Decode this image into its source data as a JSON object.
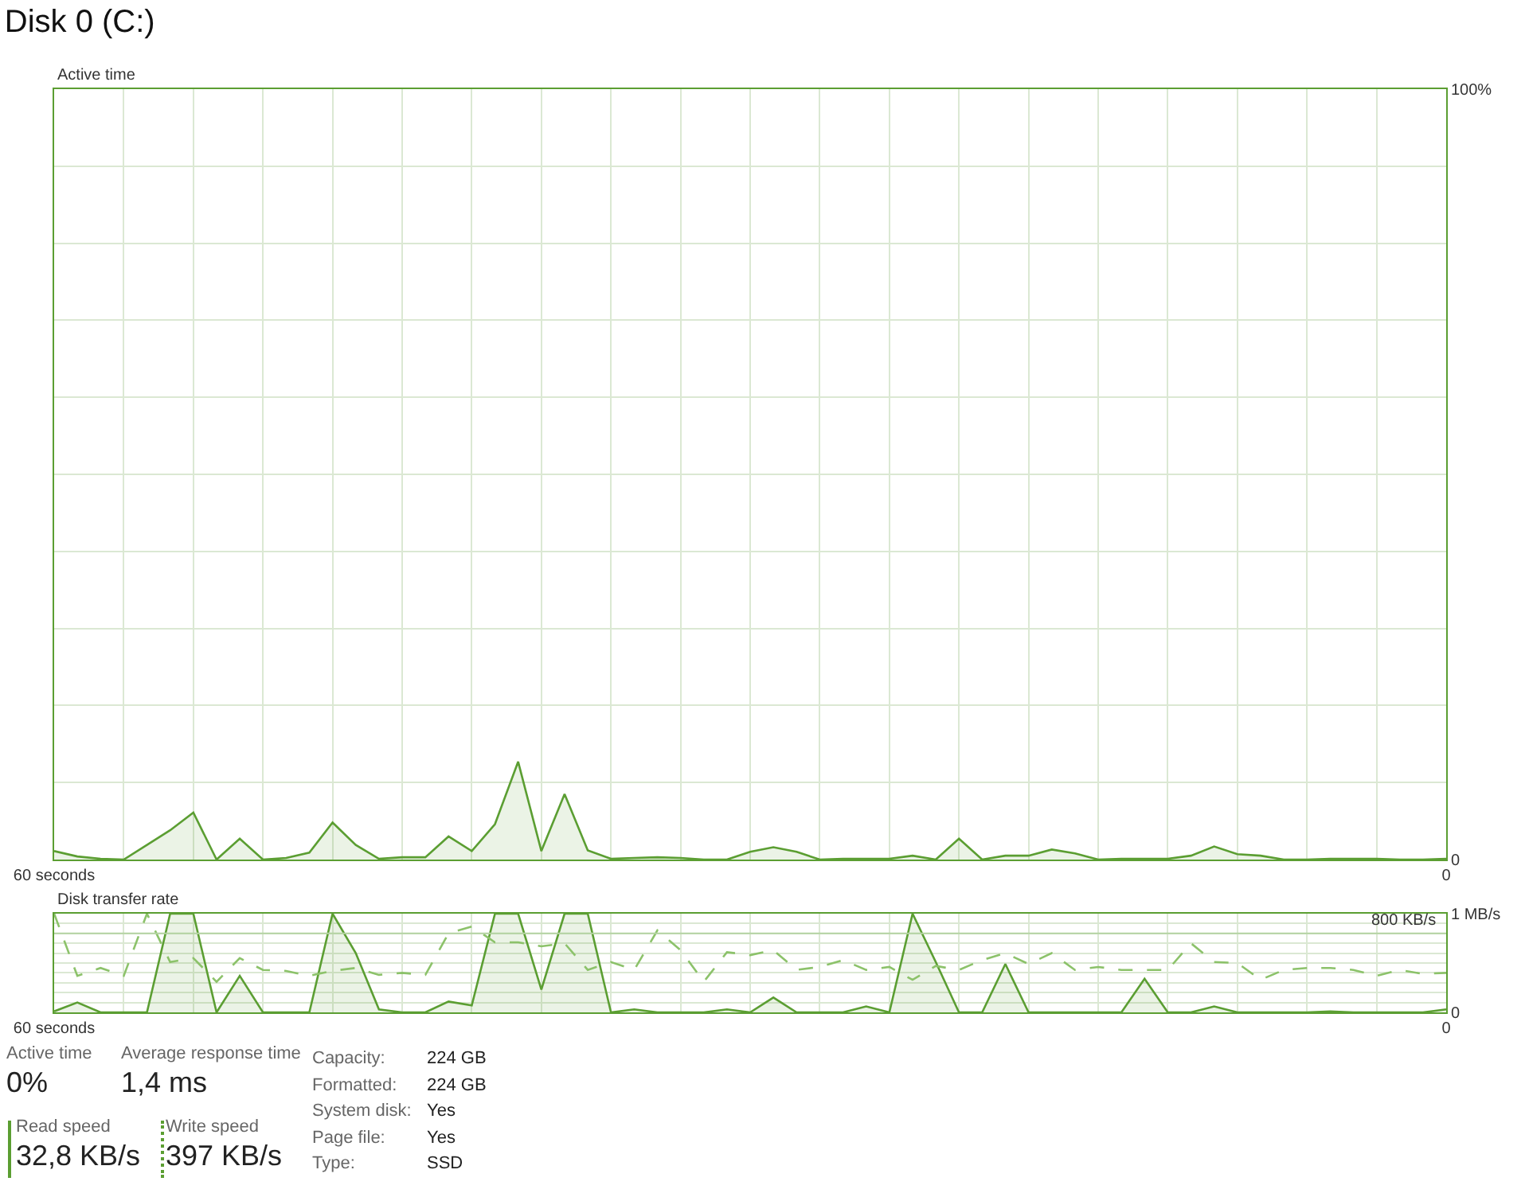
{
  "chart_data": [
    {
      "type": "area",
      "title": "Disk 0 (C:)",
      "ylabel": "Active time",
      "x": [
        60,
        59,
        58,
        57,
        56,
        55,
        54,
        53,
        52,
        51,
        50,
        49,
        48,
        47,
        46,
        45,
        44,
        43,
        42,
        41,
        40,
        39,
        38,
        37,
        36,
        35,
        34,
        33,
        32,
        31,
        30,
        29,
        28,
        27,
        26,
        25,
        24,
        23,
        22,
        21,
        20,
        19,
        18,
        17,
        16,
        15,
        14,
        13,
        12,
        11,
        10,
        9,
        8,
        7,
        6,
        5,
        4,
        3,
        2,
        1,
        0
      ],
      "series": [
        {
          "color": "#5b9e32",
          "values": [
            1.1,
            0.4,
            0.1,
            0,
            1.9,
            3.8,
            6.1,
            0,
            2.7,
            0,
            0.2,
            0.9,
            4.8,
            1.9,
            0.1,
            0.3,
            0.3,
            3.0,
            1.1,
            4.6,
            12.7,
            1.1,
            8.5,
            1.2,
            0.1,
            0.2,
            0.3,
            0.2,
            0,
            0,
            1.0,
            1.6,
            1.0,
            0,
            0.1,
            0.1,
            0.1,
            0.5,
            0,
            2.7,
            0,
            0.5,
            0.5,
            1.3,
            0.8,
            0,
            0.1,
            0.1,
            0.1,
            0.5,
            1.7,
            0.7,
            0.5,
            0,
            0,
            0.1,
            0.1,
            0.1,
            0,
            0,
            0.1
          ]
        }
      ],
      "xlim": [
        60,
        0
      ],
      "xticks": [
        {
          "value": 60,
          "label": "60 seconds"
        },
        {
          "value": 57,
          "label": null
        },
        {
          "value": 54,
          "label": null
        },
        {
          "value": 51,
          "label": null
        },
        {
          "value": 48,
          "label": null
        },
        {
          "value": 45,
          "label": null
        },
        {
          "value": 42,
          "label": null
        },
        {
          "value": 39,
          "label": null
        },
        {
          "value": 36,
          "label": null
        },
        {
          "value": 33,
          "label": null
        },
        {
          "value": 30,
          "label": null
        },
        {
          "value": 27,
          "label": null
        },
        {
          "value": 24,
          "label": null
        },
        {
          "value": 21,
          "label": null
        },
        {
          "value": 18,
          "label": null
        },
        {
          "value": 15,
          "label": null
        },
        {
          "value": 12,
          "label": null
        },
        {
          "value": 9,
          "label": null
        },
        {
          "value": 6,
          "label": null
        },
        {
          "value": 3,
          "label": null
        },
        0
      ],
      "ylim": [
        0,
        100
      ],
      "yticks": [
        0,
        {
          "value": 10,
          "label": null
        },
        {
          "value": 20,
          "label": null
        },
        {
          "value": 30,
          "label": null
        },
        {
          "value": 40,
          "label": null
        },
        {
          "value": 50,
          "label": null
        },
        {
          "value": 60,
          "label": null
        },
        {
          "value": 70,
          "label": null
        },
        {
          "value": 80,
          "label": null
        },
        {
          "value": 90,
          "label": null
        },
        {
          "value": 100,
          "label": "100%"
        }
      ],
      "grid": true
    },
    {
      "type": "area",
      "ylabel": "Disk transfer rate",
      "x": [
        60,
        59,
        58,
        57,
        56,
        55,
        54,
        53,
        52,
        51,
        50,
        49,
        48,
        47,
        46,
        45,
        44,
        43,
        42,
        41,
        40,
        39,
        38,
        37,
        36,
        35,
        34,
        33,
        32,
        31,
        30,
        29,
        28,
        27,
        26,
        25,
        24,
        23,
        22,
        21,
        20,
        19,
        18,
        17,
        16,
        15,
        14,
        13,
        12,
        11,
        10,
        9,
        8,
        7,
        6,
        5,
        4,
        3,
        2,
        1,
        0
      ],
      "series": [
        {
          "type": "area",
          "color": "#5b9e32",
          "values": [
            0.01,
            0.1,
            0,
            0,
            0,
            1,
            1,
            0,
            0.37,
            0,
            0,
            0,
            1,
            0.6,
            0.03,
            0,
            0,
            0.11,
            0.07,
            1,
            1,
            0.23,
            1,
            1,
            0,
            0.03,
            0,
            0,
            0,
            0.03,
            0,
            0.15,
            0,
            0,
            0,
            0.06,
            0,
            1,
            0.51,
            0,
            0,
            0.49,
            0,
            0,
            0,
            0,
            0,
            0.34,
            0,
            0,
            0.06,
            0,
            0,
            0,
            0,
            0.01,
            0,
            0,
            0,
            0,
            0.03
          ]
        },
        {
          "type": "line",
          "line_style": "dashed",
          "color": "#8cc26a",
          "values": [
            1,
            0.37,
            0.45,
            0.37,
            1,
            0.51,
            0.55,
            0.31,
            0.55,
            0.43,
            0.42,
            0.37,
            0.42,
            0.45,
            0.38,
            0.4,
            0.38,
            0.8,
            0.87,
            0.71,
            0.71,
            0.67,
            0.7,
            0.43,
            0.51,
            0.43,
            0.83,
            0.63,
            0.31,
            0.61,
            0.58,
            0.63,
            0.43,
            0.46,
            0.53,
            0.43,
            0.46,
            0.33,
            0.47,
            0.43,
            0.53,
            0.6,
            0.49,
            0.6,
            0.43,
            0.46,
            0.43,
            0.43,
            0.43,
            0.7,
            0.51,
            0.5,
            0.33,
            0.43,
            0.45,
            0.45,
            0.43,
            0.37,
            0.43,
            0.39,
            0.4
          ]
        }
      ],
      "xlim": [
        60,
        0
      ],
      "xticks": [
        {
          "value": 60,
          "label": "60 seconds"
        },
        {
          "value": 57,
          "label": null
        },
        {
          "value": 54,
          "label": null
        },
        {
          "value": 51,
          "label": null
        },
        {
          "value": 48,
          "label": null
        },
        {
          "value": 45,
          "label": null
        },
        {
          "value": 42,
          "label": null
        },
        {
          "value": 39,
          "label": null
        },
        {
          "value": 36,
          "label": null
        },
        {
          "value": 33,
          "label": null
        },
        {
          "value": 30,
          "label": null
        },
        {
          "value": 27,
          "label": null
        },
        {
          "value": 24,
          "label": null
        },
        {
          "value": 21,
          "label": null
        },
        {
          "value": 18,
          "label": null
        },
        {
          "value": 15,
          "label": null
        },
        {
          "value": 12,
          "label": null
        },
        {
          "value": 9,
          "label": null
        },
        {
          "value": 6,
          "label": null
        },
        {
          "value": 3,
          "label": null
        },
        0
      ],
      "ylim": [
        0,
        1
      ],
      "yticks": [
        0,
        {
          "value": 0.1,
          "label": null
        },
        {
          "value": 0.2,
          "label": null
        },
        {
          "value": 0.3,
          "label": null
        },
        {
          "value": 0.4,
          "label": null
        },
        {
          "value": 0.5,
          "label": null
        },
        {
          "value": 0.6,
          "label": null
        },
        {
          "value": 0.7,
          "label": null
        },
        {
          "value": 0.8,
          "label": null
        },
        {
          "value": 0.9,
          "label": null
        },
        {
          "value": 1,
          "label": "1 MB/s"
        }
      ],
      "ref_lines": [
        {
          "axis": "y",
          "value": 0.8,
          "label": "800 KB/s",
          "color": "#b5d3a3"
        }
      ],
      "grid": true
    },
    {
      "type": "other",
      "annotations": [
        "Active time",
        "0%",
        "Average response time",
        "1,4 ms",
        "Read speed",
        "32,8 KB/s",
        "Write speed",
        "397 KB/s",
        "Capacity:",
        "224 GB",
        "Formatted:",
        "224 GB",
        "System disk:",
        "Yes",
        "Page file:",
        "Yes",
        "Type:",
        "SSD"
      ]
    }
  ]
}
